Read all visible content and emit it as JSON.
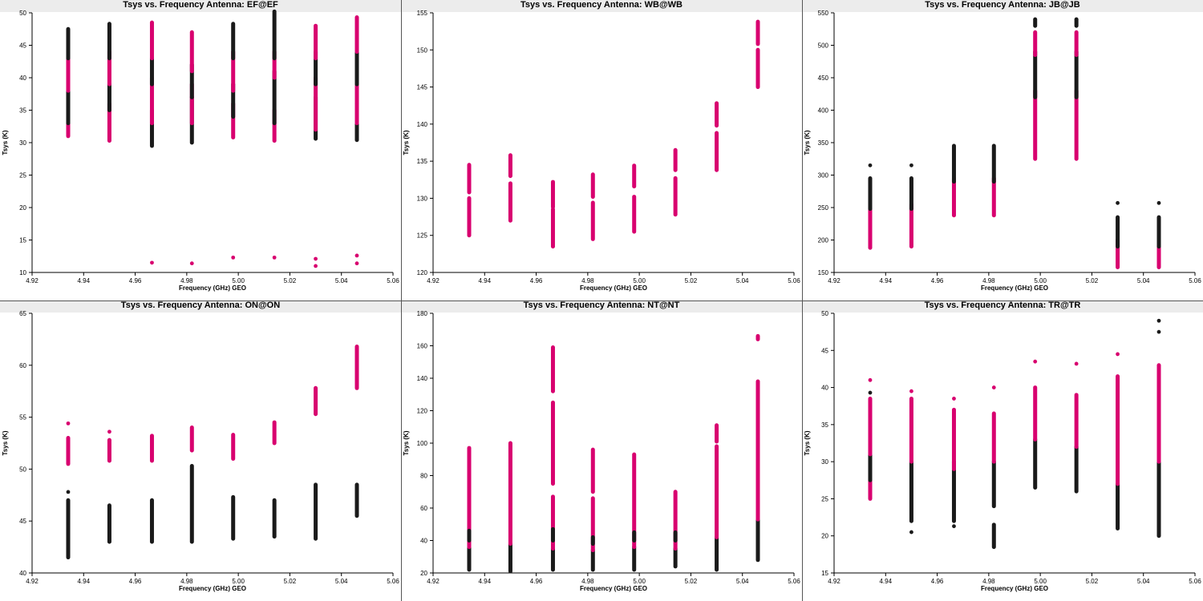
{
  "x_label": "Frequency (GHz) GEO",
  "y_label": "Tsys (K)",
  "series_colors": {
    "a": "#d8006f",
    "b": "#1a1a1a"
  },
  "chart_data": [
    {
      "type": "scatter",
      "title": "Tsys vs. Frequency Antenna: EF@EF",
      "xlim": [
        4.92,
        5.06
      ],
      "ylim": [
        10,
        50
      ],
      "yticks": [
        10,
        15,
        20,
        25,
        30,
        35,
        40,
        45,
        50
      ],
      "columns": [
        {
          "x": 4.934,
          "segs": [
            [
              31,
              36,
              "a"
            ],
            [
              33,
              38,
              "b"
            ],
            [
              38,
              43,
              "a"
            ],
            [
              43,
              47.5,
              "b"
            ]
          ]
        },
        {
          "x": 4.95,
          "segs": [
            [
              30.3,
              36,
              "a"
            ],
            [
              35,
              39,
              "b"
            ],
            [
              39,
              44,
              "a"
            ],
            [
              43,
              48.3,
              "b"
            ]
          ]
        },
        {
          "x": 4.9665,
          "segs": [
            [
              29.5,
              35,
              "b"
            ],
            [
              33,
              40,
              "a"
            ],
            [
              39,
              43,
              "b"
            ],
            [
              43,
              48.5,
              "a"
            ]
          ],
          "extra": [
            [
              11.5,
              "a"
            ]
          ]
        },
        {
          "x": 4.982,
          "segs": [
            [
              30,
              37,
              "b"
            ],
            [
              33,
              39,
              "a"
            ],
            [
              37,
              42,
              "b"
            ],
            [
              41,
              47,
              "a"
            ]
          ],
          "extra": [
            [
              11.4,
              "a"
            ]
          ]
        },
        {
          "x": 4.998,
          "segs": [
            [
              30.8,
              36,
              "a"
            ],
            [
              34,
              39,
              "b"
            ],
            [
              38,
              44,
              "a"
            ],
            [
              43,
              48.3,
              "b"
            ]
          ],
          "extra": [
            [
              12.3,
              "a"
            ]
          ]
        },
        {
          "x": 5.014,
          "segs": [
            [
              30.3,
              35,
              "a"
            ],
            [
              33,
              41,
              "b"
            ],
            [
              40,
              44,
              "a"
            ],
            [
              43,
              50.2,
              "b"
            ]
          ],
          "extra": [
            [
              12.3,
              "a"
            ]
          ]
        },
        {
          "x": 5.03,
          "segs": [
            [
              30.6,
              37,
              "b"
            ],
            [
              32,
              40,
              "a"
            ],
            [
              39,
              44,
              "b"
            ],
            [
              43,
              48,
              "a"
            ]
          ],
          "extra": [
            [
              12.1,
              "a"
            ],
            [
              11.0,
              "a"
            ]
          ]
        },
        {
          "x": 5.046,
          "segs": [
            [
              30.4,
              36,
              "b"
            ],
            [
              33,
              40,
              "a"
            ],
            [
              39,
              46,
              "b"
            ],
            [
              44,
              49.3,
              "a"
            ]
          ],
          "extra": [
            [
              12.6,
              "a"
            ],
            [
              11.4,
              "a"
            ]
          ]
        }
      ]
    },
    {
      "type": "scatter",
      "title": "Tsys vs. Frequency Antenna: WB@WB",
      "xlim": [
        4.92,
        5.06
      ],
      "ylim": [
        120,
        155
      ],
      "yticks": [
        120,
        125,
        130,
        135,
        140,
        145,
        150,
        155
      ],
      "columns": [
        {
          "x": 4.934,
          "segs": [
            [
              125,
              130,
              "a"
            ],
            [
              130.8,
              134.5,
              "a"
            ]
          ]
        },
        {
          "x": 4.95,
          "segs": [
            [
              127,
              132,
              "a"
            ],
            [
              133,
              135.8,
              "a"
            ]
          ]
        },
        {
          "x": 4.9665,
          "segs": [
            [
              123.5,
              128.5,
              "a"
            ],
            [
              128.8,
              132.2,
              "a"
            ]
          ]
        },
        {
          "x": 4.982,
          "segs": [
            [
              124.5,
              129.4,
              "a"
            ],
            [
              130.2,
              133.2,
              "a"
            ]
          ]
        },
        {
          "x": 4.998,
          "segs": [
            [
              125.5,
              130.2,
              "a"
            ],
            [
              131.6,
              134.4,
              "a"
            ]
          ]
        },
        {
          "x": 5.014,
          "segs": [
            [
              127.8,
              132.7,
              "a"
            ],
            [
              133.8,
              136.5,
              "a"
            ]
          ]
        },
        {
          "x": 5.03,
          "segs": [
            [
              133.8,
              138.8,
              "a"
            ],
            [
              139.8,
              142.8,
              "a"
            ]
          ]
        },
        {
          "x": 5.046,
          "segs": [
            [
              145,
              150,
              "a"
            ],
            [
              150.8,
              153.8,
              "a"
            ]
          ]
        }
      ]
    },
    {
      "type": "scatter",
      "title": "Tsys vs. Frequency Antenna: JB@JB",
      "xlim": [
        4.92,
        5.06
      ],
      "ylim": [
        150,
        550
      ],
      "yticks": [
        150,
        200,
        250,
        300,
        350,
        400,
        450,
        500,
        550
      ],
      "columns": [
        {
          "x": 4.934,
          "segs": [
            [
              188,
              255,
              "a"
            ],
            [
              248,
              295,
              "b"
            ]
          ],
          "extra": [
            [
              315,
              "b"
            ]
          ]
        },
        {
          "x": 4.95,
          "segs": [
            [
              190,
              255,
              "a"
            ],
            [
              248,
              295,
              "b"
            ]
          ],
          "extra": [
            [
              315,
              "b"
            ]
          ]
        },
        {
          "x": 4.9665,
          "segs": [
            [
              238,
              295,
              "a"
            ],
            [
              290,
              345,
              "b"
            ]
          ]
        },
        {
          "x": 4.982,
          "segs": [
            [
              238,
              295,
              "a"
            ],
            [
              290,
              345,
              "b"
            ]
          ]
        },
        {
          "x": 4.998,
          "segs": [
            [
              325,
              430,
              "a"
            ],
            [
              420,
              490,
              "b"
            ],
            [
              485,
              520,
              "a"
            ],
            [
              530,
              540,
              "b"
            ]
          ]
        },
        {
          "x": 5.014,
          "segs": [
            [
              325,
              430,
              "a"
            ],
            [
              420,
              490,
              "b"
            ],
            [
              485,
              520,
              "a"
            ],
            [
              530,
              540,
              "b"
            ]
          ]
        },
        {
          "x": 5.03,
          "segs": [
            [
              158,
              200,
              "a"
            ],
            [
              190,
              235,
              "b"
            ]
          ],
          "extra": [
            [
              257,
              "b"
            ]
          ]
        },
        {
          "x": 5.046,
          "segs": [
            [
              158,
              200,
              "a"
            ],
            [
              190,
              235,
              "b"
            ]
          ],
          "extra": [
            [
              257,
              "b"
            ]
          ]
        }
      ]
    },
    {
      "type": "scatter",
      "title": "Tsys vs. Frequency Antenna: ON@ON",
      "xlim": [
        4.92,
        5.06
      ],
      "ylim": [
        40,
        65
      ],
      "yticks": [
        40,
        45,
        50,
        55,
        60,
        65
      ],
      "columns": [
        {
          "x": 4.934,
          "segs": [
            [
              41.5,
              47,
              "b"
            ],
            [
              50.5,
              53,
              "a"
            ]
          ],
          "extra": [
            [
              47.8,
              "b"
            ],
            [
              54.4,
              "a"
            ]
          ]
        },
        {
          "x": 4.95,
          "segs": [
            [
              43,
              46.5,
              "b"
            ],
            [
              50.8,
              52.8,
              "a"
            ]
          ],
          "extra": [
            [
              53.6,
              "a"
            ]
          ]
        },
        {
          "x": 4.9665,
          "segs": [
            [
              43,
              47,
              "b"
            ],
            [
              50.8,
              53.2,
              "a"
            ]
          ]
        },
        {
          "x": 4.982,
          "segs": [
            [
              43,
              50.3,
              "b"
            ],
            [
              51.8,
              54,
              "a"
            ]
          ]
        },
        {
          "x": 4.998,
          "segs": [
            [
              43.3,
              47.3,
              "b"
            ],
            [
              51,
              53.3,
              "a"
            ]
          ]
        },
        {
          "x": 5.014,
          "segs": [
            [
              43.5,
              47,
              "b"
            ],
            [
              52.5,
              54.5,
              "a"
            ]
          ]
        },
        {
          "x": 5.03,
          "segs": [
            [
              43.3,
              48.5,
              "b"
            ],
            [
              55.3,
              57.8,
              "a"
            ]
          ]
        },
        {
          "x": 5.046,
          "segs": [
            [
              45.5,
              48.5,
              "b"
            ],
            [
              57.8,
              61.8,
              "a"
            ]
          ]
        }
      ]
    },
    {
      "type": "scatter",
      "title": "Tsys vs. Frequency Antenna: NT@NT",
      "xlim": [
        4.92,
        5.06
      ],
      "ylim": [
        20,
        180
      ],
      "yticks": [
        20,
        40,
        60,
        80,
        100,
        120,
        140,
        160,
        180
      ],
      "columns": [
        {
          "x": 4.934,
          "segs": [
            [
              22,
              36,
              "b"
            ],
            [
              36,
              97,
              "a"
            ],
            [
              40,
              46,
              "b"
            ]
          ]
        },
        {
          "x": 4.95,
          "segs": [
            [
              21,
              38,
              "b"
            ],
            [
              38,
              100,
              "a"
            ]
          ]
        },
        {
          "x": 4.9665,
          "segs": [
            [
              22,
              35,
              "b"
            ],
            [
              35,
              67,
              "a"
            ],
            [
              40,
              47,
              "b"
            ],
            [
              75,
              125,
              "a"
            ],
            [
              132,
              159,
              "a"
            ]
          ]
        },
        {
          "x": 4.982,
          "segs": [
            [
              22,
              34,
              "b"
            ],
            [
              34,
              66,
              "a"
            ],
            [
              38,
              42,
              "b"
            ],
            [
              70,
              96,
              "a"
            ]
          ]
        },
        {
          "x": 4.998,
          "segs": [
            [
              22,
              36,
              "b"
            ],
            [
              36,
              93,
              "a"
            ],
            [
              40,
              45,
              "b"
            ]
          ]
        },
        {
          "x": 5.014,
          "segs": [
            [
              24,
              35,
              "b"
            ],
            [
              35,
              70,
              "a"
            ],
            [
              40,
              45,
              "b"
            ]
          ]
        },
        {
          "x": 5.03,
          "segs": [
            [
              22,
              42,
              "b"
            ],
            [
              42,
              98,
              "a"
            ],
            [
              101,
              111,
              "a"
            ]
          ]
        },
        {
          "x": 5.046,
          "segs": [
            [
              28,
              53,
              "b"
            ],
            [
              53,
              138,
              "a"
            ],
            [
              164,
              166,
              "a"
            ]
          ]
        }
      ]
    },
    {
      "type": "scatter",
      "title": "Tsys vs. Frequency Antenna: TR@TR",
      "xlim": [
        4.92,
        5.06
      ],
      "ylim": [
        15,
        50
      ],
      "yticks": [
        15,
        20,
        25,
        30,
        35,
        40,
        45,
        50
      ],
      "columns": [
        {
          "x": 4.934,
          "segs": [
            [
              25,
              30,
              "a"
            ],
            [
              27.5,
              33,
              "b"
            ],
            [
              31,
              38.5,
              "a"
            ]
          ],
          "extra": [
            [
              39.3,
              "b"
            ],
            [
              41,
              "a"
            ]
          ]
        },
        {
          "x": 4.95,
          "segs": [
            [
              22,
              30,
              "b"
            ],
            [
              30,
              38.5,
              "a"
            ]
          ],
          "extra": [
            [
              20.5,
              "b"
            ],
            [
              39.5,
              "a"
            ]
          ]
        },
        {
          "x": 4.9665,
          "segs": [
            [
              22,
              30,
              "b"
            ],
            [
              29,
              37,
              "a"
            ]
          ],
          "extra": [
            [
              21.3,
              "b"
            ],
            [
              38.5,
              "a"
            ]
          ]
        },
        {
          "x": 4.982,
          "segs": [
            [
              18.5,
              21.5,
              "b"
            ],
            [
              24,
              30,
              "b"
            ],
            [
              30,
              36.5,
              "a"
            ]
          ],
          "extra": [
            [
              40,
              "a"
            ]
          ]
        },
        {
          "x": 4.998,
          "segs": [
            [
              26.5,
              33,
              "b"
            ],
            [
              33,
              40,
              "a"
            ]
          ],
          "extra": [
            [
              43.5,
              "a"
            ]
          ]
        },
        {
          "x": 5.014,
          "segs": [
            [
              26,
              32,
              "b"
            ],
            [
              32,
              39,
              "a"
            ]
          ],
          "extra": [
            [
              43.2,
              "a"
            ]
          ]
        },
        {
          "x": 5.03,
          "segs": [
            [
              21,
              27,
              "b"
            ],
            [
              27,
              41.5,
              "a"
            ]
          ],
          "extra": [
            [
              44.5,
              "a"
            ]
          ]
        },
        {
          "x": 5.046,
          "segs": [
            [
              20,
              30,
              "b"
            ],
            [
              30,
              43,
              "a"
            ]
          ],
          "extra": [
            [
              47.5,
              "b"
            ],
            [
              49,
              "b"
            ]
          ]
        }
      ]
    }
  ]
}
